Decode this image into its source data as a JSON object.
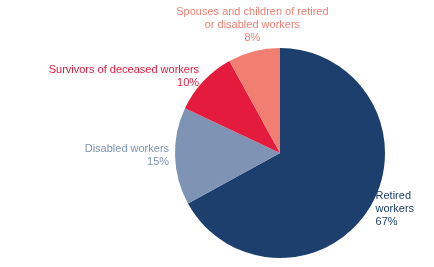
{
  "chart_data": {
    "type": "pie",
    "categories": [
      "Retired workers",
      "Disabled workers",
      "Survivors of deceased workers",
      "Spouses and children of retired or disabled workers"
    ],
    "values": [
      67,
      15,
      10,
      8
    ],
    "value_labels": [
      "67%",
      "15%",
      "10%",
      "8%"
    ],
    "colors": [
      "#1c3f6e",
      "#7f93b5",
      "#e41b3c",
      "#f07f72"
    ],
    "data_labels": true
  }
}
